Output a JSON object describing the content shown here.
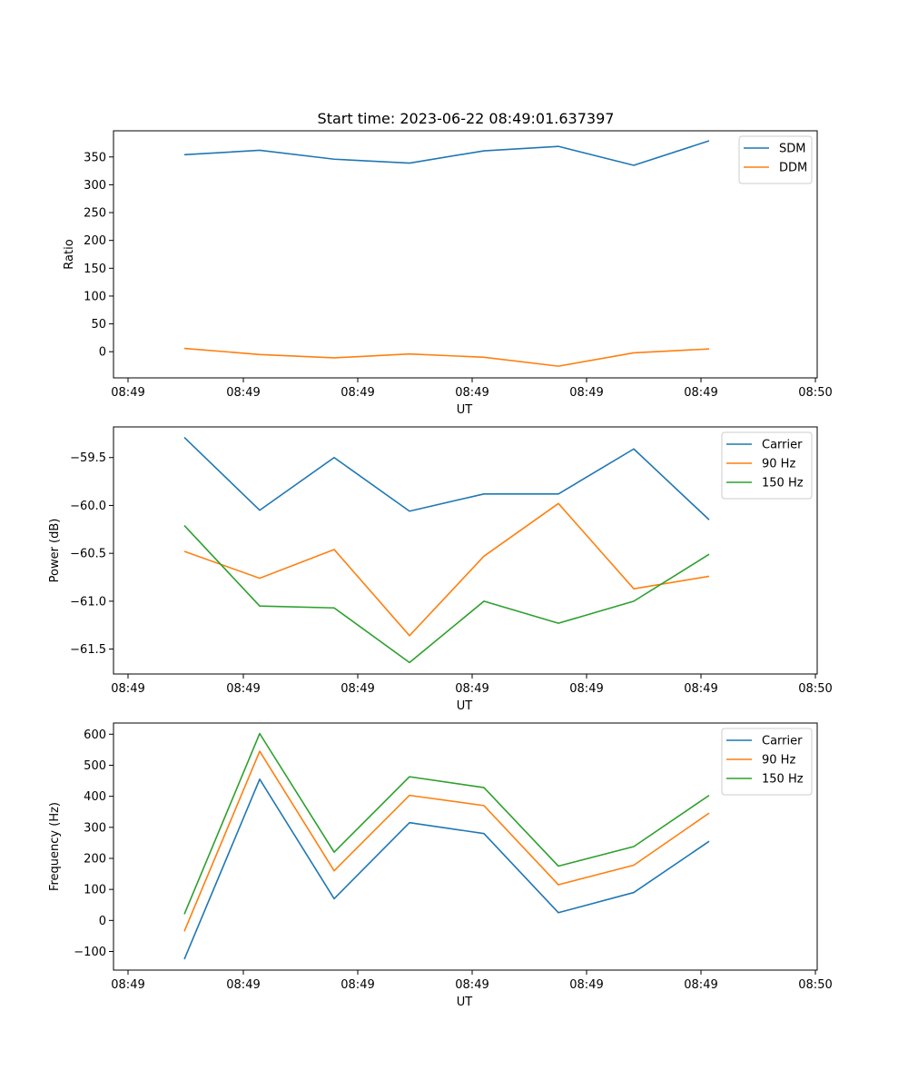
{
  "title": "Start time: 2023-06-22 08:49:01.637397",
  "colors": {
    "blue": "#1f77b4",
    "orange": "#ff7f0e",
    "green": "#2ca02c"
  },
  "chart_data": [
    {
      "type": "line",
      "xlabel": "UT",
      "ylabel": "Ratio",
      "x_tick_labels": [
        "08:49",
        "08:49",
        "08:49",
        "08:49",
        "08:49",
        "08:49",
        "08:50"
      ],
      "y_ticks": [
        0,
        50,
        100,
        150,
        200,
        250,
        300,
        350
      ],
      "ylim": [
        -47,
        397
      ],
      "grid": false,
      "legend_position": "top-right",
      "series": [
        {
          "name": "SDM",
          "color": "#1f77b4",
          "values": [
            354,
            362,
            346,
            339,
            361,
            369,
            335,
            379
          ]
        },
        {
          "name": "DDM",
          "color": "#ff7f0e",
          "values": [
            6,
            -5,
            -11,
            -4,
            -10,
            -26,
            -2,
            5
          ]
        }
      ]
    },
    {
      "type": "line",
      "xlabel": "UT",
      "ylabel": "Power (dB)",
      "x_tick_labels": [
        "08:49",
        "08:49",
        "08:49",
        "08:49",
        "08:49",
        "08:49",
        "08:50"
      ],
      "y_ticks": [
        -61.5,
        -61.0,
        -60.5,
        -60.0,
        -59.5
      ],
      "y_tick_labels": [
        "−61.5",
        "−61.0",
        "−60.5",
        "−60.0",
        "−59.5"
      ],
      "ylim": [
        -61.76,
        -59.18
      ],
      "grid": false,
      "legend_position": "top-right",
      "series": [
        {
          "name": "Carrier",
          "color": "#1f77b4",
          "values": [
            -59.29,
            -60.05,
            -59.5,
            -60.06,
            -59.88,
            -59.88,
            -59.41,
            -60.15
          ]
        },
        {
          "name": "90 Hz",
          "color": "#ff7f0e",
          "values": [
            -60.48,
            -60.76,
            -60.46,
            -61.36,
            -60.53,
            -59.98,
            -60.87,
            -60.74
          ]
        },
        {
          "name": "150 Hz",
          "color": "#2ca02c",
          "values": [
            -60.21,
            -61.05,
            -61.07,
            -61.64,
            -61.0,
            -61.23,
            -61.0,
            -60.51
          ]
        }
      ]
    },
    {
      "type": "line",
      "xlabel": "UT",
      "ylabel": "Frequency (Hz)",
      "x_tick_labels": [
        "08:49",
        "08:49",
        "08:49",
        "08:49",
        "08:49",
        "08:49",
        "08:50"
      ],
      "y_ticks": [
        -100,
        0,
        100,
        200,
        300,
        400,
        500,
        600
      ],
      "y_tick_labels": [
        "−100",
        "0",
        "100",
        "200",
        "300",
        "400",
        "500",
        "600"
      ],
      "ylim": [
        -160,
        636
      ],
      "grid": false,
      "legend_position": "top-right",
      "series": [
        {
          "name": "Carrier",
          "color": "#1f77b4",
          "values": [
            -125,
            455,
            70,
            315,
            280,
            25,
            90,
            255
          ]
        },
        {
          "name": "90 Hz",
          "color": "#ff7f0e",
          "values": [
            -35,
            545,
            160,
            403,
            370,
            115,
            178,
            346
          ]
        },
        {
          "name": "150 Hz",
          "color": "#2ca02c",
          "values": [
            20,
            602,
            220,
            463,
            428,
            175,
            238,
            403
          ]
        }
      ]
    }
  ]
}
